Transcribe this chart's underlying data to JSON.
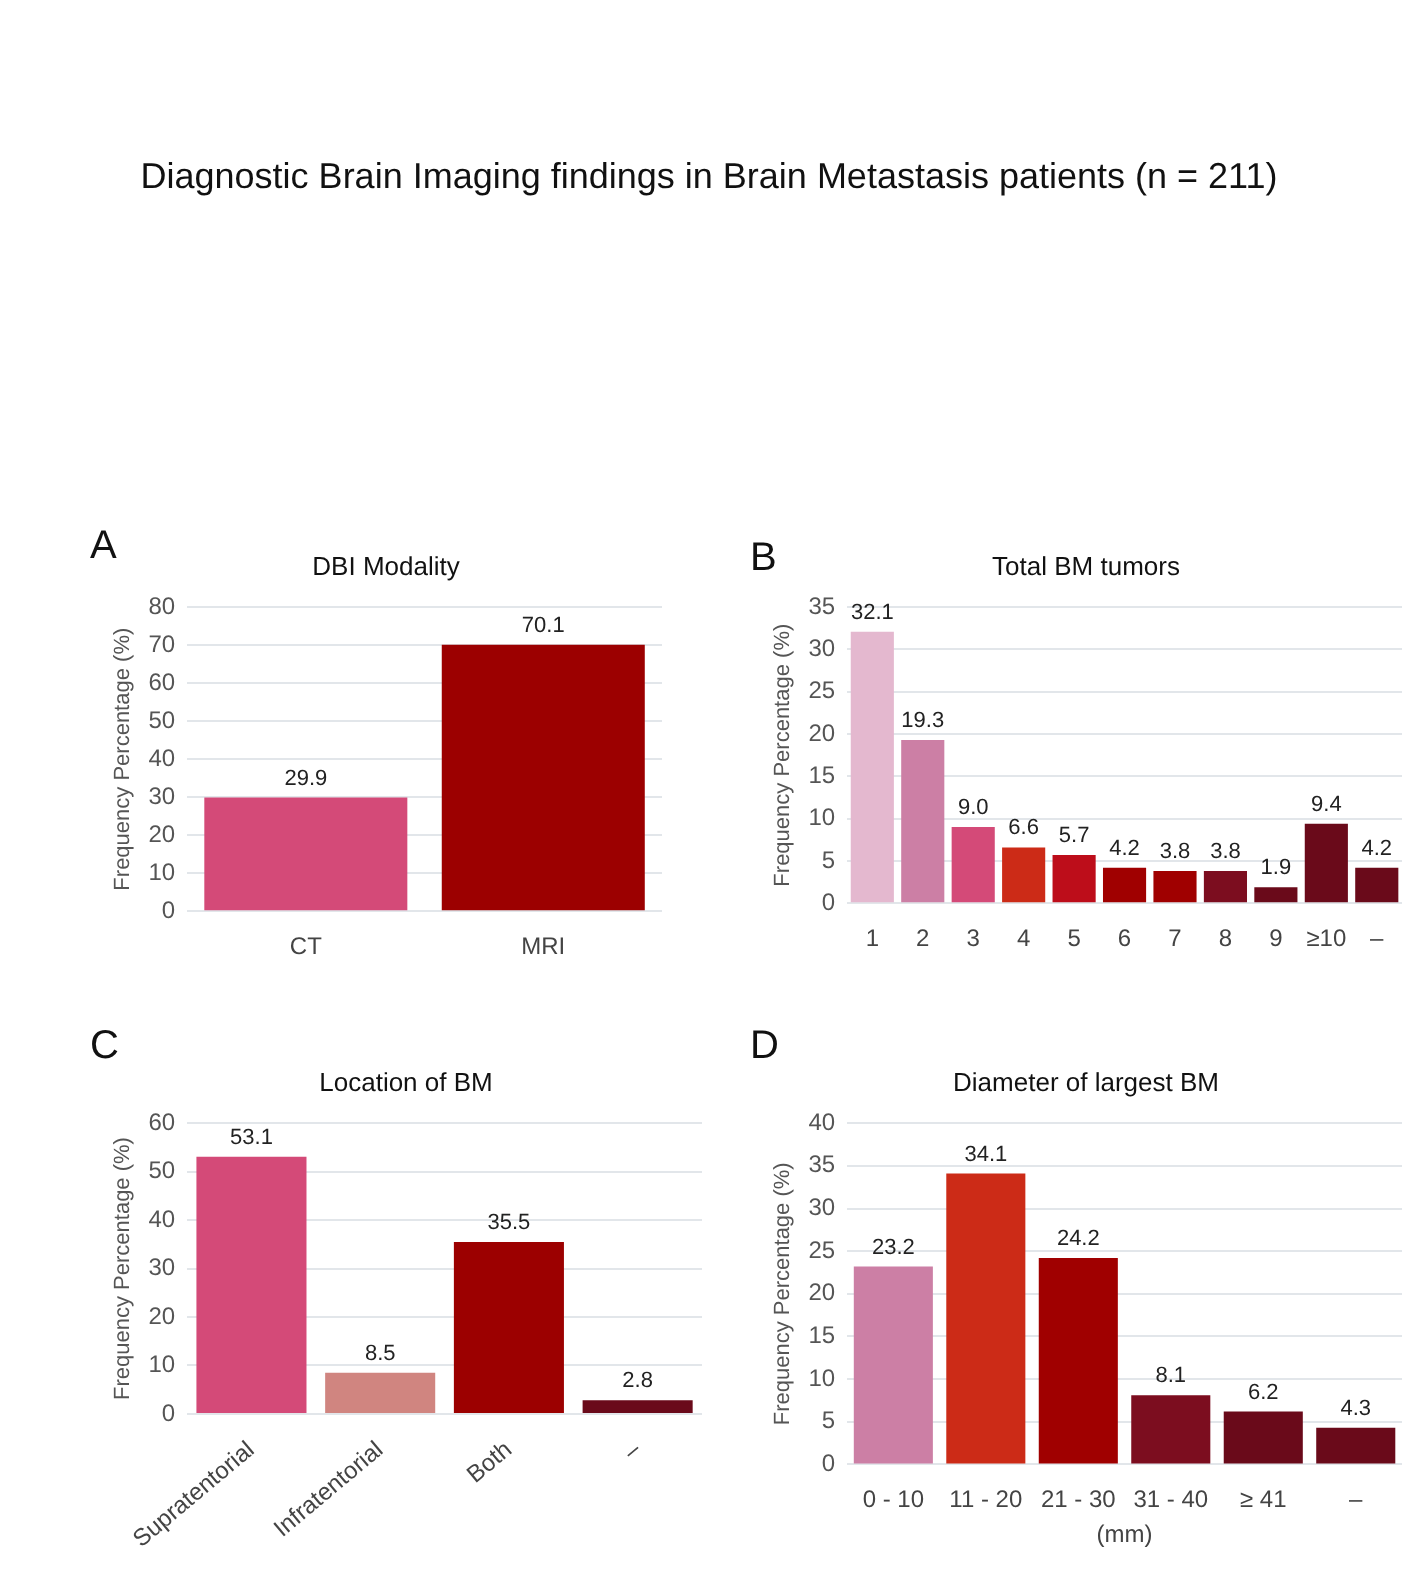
{
  "chart_data": [
    {
      "type": "bar",
      "title": "DBI Modality",
      "ylabel": "Frequency Percentage (%)",
      "annotations": [
        "A",
        "Diagnostic Brain Imaging findings in Brain Metastasis patients (n = 211)"
      ],
      "categories": [
        "CT",
        "MRI"
      ],
      "values": [
        29.9,
        70.1
      ],
      "colors": [
        "#d44a78",
        "#9c0000"
      ],
      "ylim": [
        0,
        80
      ],
      "yticks": [
        0,
        10,
        20,
        30,
        40,
        50,
        60,
        70,
        80
      ],
      "grid": "y",
      "data_labels": true
    },
    {
      "type": "bar",
      "title": "Total BM tumors",
      "ylabel": "Frequency Percentage (%)",
      "annotations": [
        "B"
      ],
      "categories": [
        "1",
        "2",
        "3",
        "4",
        "5",
        "6",
        "7",
        "8",
        "9",
        "≥10",
        "–"
      ],
      "values": [
        32.1,
        19.3,
        9.0,
        6.6,
        5.7,
        4.2,
        3.8,
        3.8,
        1.9,
        9.4,
        4.2
      ],
      "colors": [
        "#e4b8cf",
        "#cc7fa5",
        "#d44a78",
        "#cc2b17",
        "#bd0d1a",
        "#a00000",
        "#a00000",
        "#7c0d1f",
        "#6a0a1a",
        "#6a0a1a",
        "#6a0a1a"
      ],
      "value_labels": [
        "32.1",
        "19.3",
        "9.0",
        "6.6",
        "5.7",
        "4.2",
        "3.8",
        "3.8",
        "1.9",
        "9.4",
        "4.2"
      ],
      "ylim": [
        0,
        35
      ],
      "yticks": [
        0,
        5,
        10,
        15,
        20,
        25,
        30,
        35
      ],
      "grid": "y"
    },
    {
      "type": "bar",
      "title": "Location of BM",
      "ylabel": "Frequency Percentage (%)",
      "annotations": [
        "C"
      ],
      "categories": [
        "Supratentorial",
        "Infratentorial",
        "Both",
        "–"
      ],
      "values": [
        53.1,
        8.5,
        35.5,
        2.8
      ],
      "colors": [
        "#d44a78",
        "#d08580",
        "#9c0000",
        "#6a0a1a"
      ],
      "ylim": [
        0,
        60
      ],
      "yticks": [
        0,
        10,
        20,
        30,
        40,
        50,
        60
      ],
      "grid": "y",
      "data_labels": true
    },
    {
      "type": "bar",
      "title": "Diameter of largest BM",
      "xlabel": "(mm)",
      "ylabel": "Frequency Percentage (%)",
      "annotations": [
        "D"
      ],
      "categories": [
        "0 - 10",
        "11 - 20",
        "21 - 30",
        "31 - 40",
        "≥ 41",
        "–"
      ],
      "values": [
        23.2,
        34.1,
        24.2,
        8.1,
        6.2,
        4.3
      ],
      "colors": [
        "#cc7fa5",
        "#cc2b17",
        "#a00000",
        "#7c0d1f",
        "#6a0a1a",
        "#6a0a1a"
      ],
      "ylim": [
        0,
        40
      ],
      "yticks": [
        0,
        5,
        10,
        15,
        20,
        25,
        30,
        35,
        40
      ],
      "grid": "y",
      "data_labels": true
    }
  ]
}
